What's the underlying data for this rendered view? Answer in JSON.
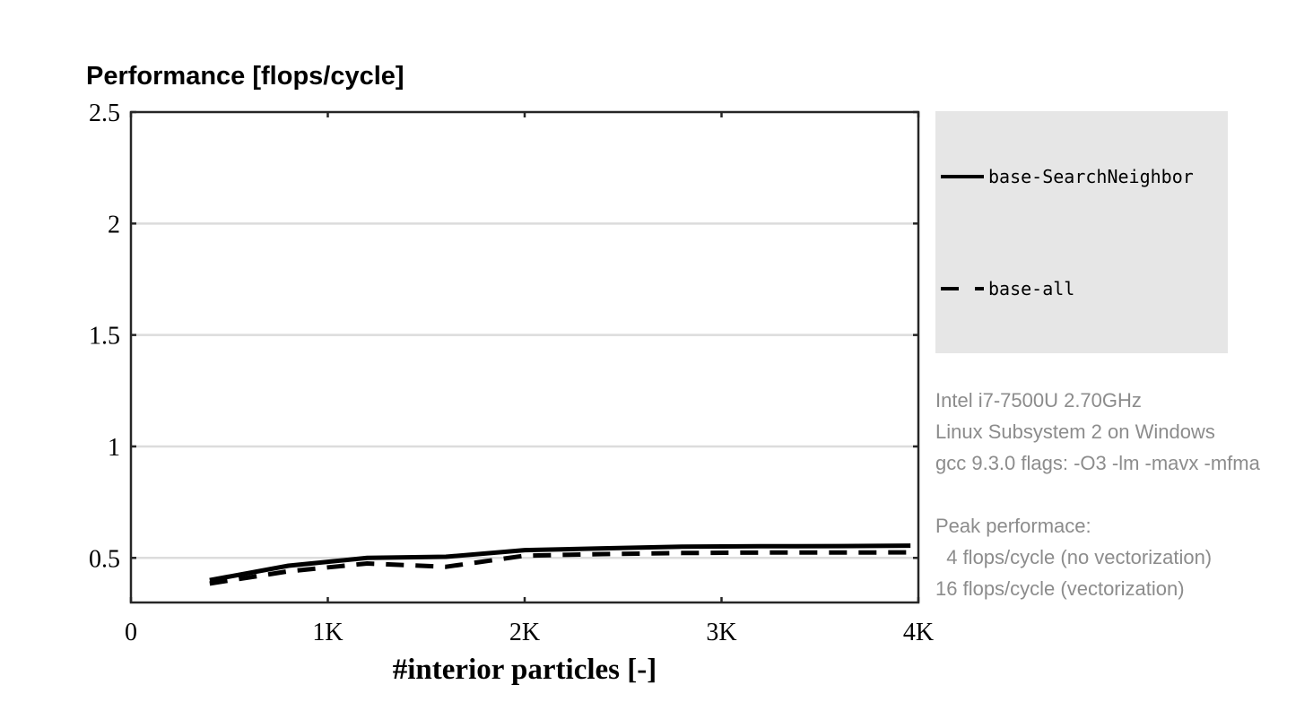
{
  "chart_data": {
    "type": "line",
    "title": "Performance [flops/cycle]",
    "xlabel": "#interior particles [-]",
    "ylabel": "",
    "xlim": [
      0,
      4000
    ],
    "ylim": [
      0.3,
      2.5
    ],
    "x_ticks": [
      {
        "value": 0,
        "label": "0"
      },
      {
        "value": 1000,
        "label": "1K"
      },
      {
        "value": 2000,
        "label": "2K"
      },
      {
        "value": 3000,
        "label": "3K"
      },
      {
        "value": 4000,
        "label": "4K"
      }
    ],
    "y_ticks": [
      {
        "value": 0.5,
        "label": "0.5"
      },
      {
        "value": 1,
        "label": "1"
      },
      {
        "value": 1.5,
        "label": "1.5"
      },
      {
        "value": 2,
        "label": "2"
      },
      {
        "value": 2.5,
        "label": "2.5"
      }
    ],
    "grid": "horizontal",
    "legend_position": "right",
    "series": [
      {
        "name": "base-SearchNeighbor",
        "style": "solid",
        "color": "#000000",
        "x": [
          400,
          800,
          1200,
          1600,
          2000,
          2400,
          2800,
          3200,
          3600,
          3960
        ],
        "y": [
          0.4,
          0.465,
          0.5,
          0.505,
          0.535,
          0.543,
          0.55,
          0.552,
          0.553,
          0.555
        ]
      },
      {
        "name": "base-all",
        "style": "dashed",
        "color": "#000000",
        "x": [
          400,
          800,
          1200,
          1600,
          2000,
          2400,
          2800,
          3200,
          3600,
          3960
        ],
        "y": [
          0.385,
          0.44,
          0.475,
          0.46,
          0.51,
          0.517,
          0.522,
          0.524,
          0.524,
          0.525
        ]
      }
    ]
  },
  "info": {
    "lines": [
      "Intel i7-7500U 2.70GHz",
      "Linux Subsystem 2 on Windows",
      "gcc 9.3.0 flags: -O3 -lm -mavx -mfma",
      "",
      "Peak performace:",
      "  4 flops/cycle (no vectorization)",
      "16 flops/cycle (vectorization)"
    ]
  },
  "colors": {
    "legend_background": "#e6e6e6",
    "gridline": "#dcdcdc",
    "axis": "#262626",
    "info_text": "#8c8c8c"
  }
}
